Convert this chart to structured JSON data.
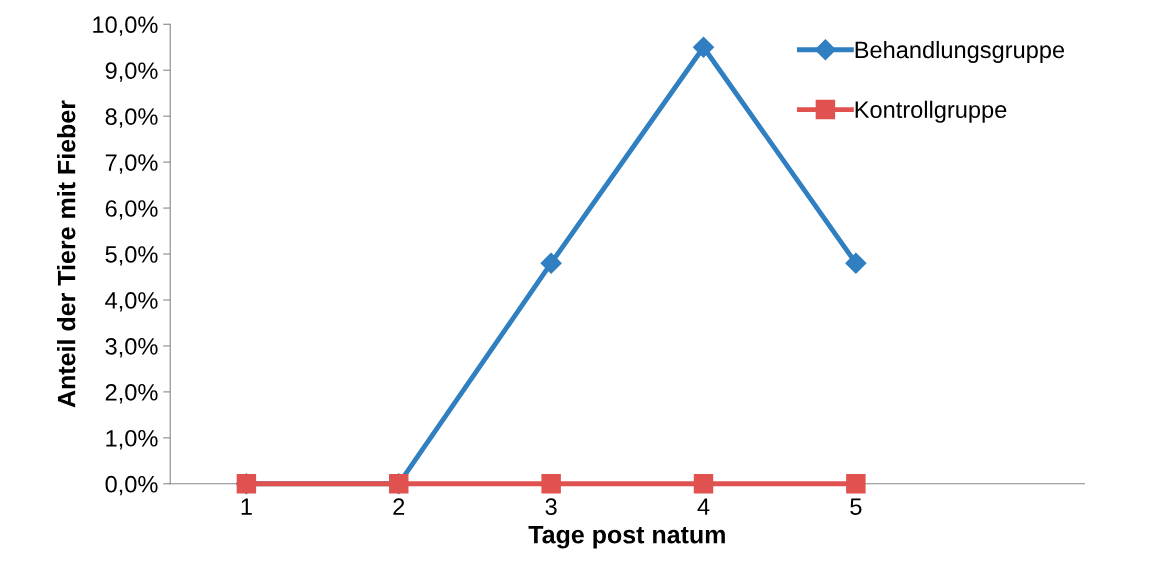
{
  "chart_data": {
    "type": "line",
    "xlabel": "Tage post natum",
    "ylabel": "Anteil der Tiere mit Fieber",
    "categories": [
      "1",
      "2",
      "3",
      "4",
      "5",
      null
    ],
    "series": [
      {
        "name": "Behandlungsgruppe",
        "color": "#2f7fc1",
        "marker": "diamond",
        "values": [
          0,
          0,
          4.8,
          9.5,
          4.8,
          null
        ]
      },
      {
        "name": "Kontrollgruppe",
        "color": "#e0524f",
        "marker": "square",
        "values": [
          0,
          0,
          0,
          0,
          0,
          null
        ]
      }
    ],
    "ylim": [
      0,
      10
    ],
    "yticks": [
      {
        "value": 0,
        "label": "0,0%"
      },
      {
        "value": 1,
        "label": "1,0%"
      },
      {
        "value": 2,
        "label": "2,0%"
      },
      {
        "value": 3,
        "label": "3,0%"
      },
      {
        "value": 4,
        "label": "4,0%"
      },
      {
        "value": 5,
        "label": "5,0%"
      },
      {
        "value": 6,
        "label": "6,0%"
      },
      {
        "value": 7,
        "label": "7,0%"
      },
      {
        "value": 8,
        "label": "8,0%"
      },
      {
        "value": 9,
        "label": "9,0%"
      },
      {
        "value": 10,
        "label": "10,0%"
      }
    ],
    "grid": false,
    "legend": "top right",
    "line_style": "solid"
  }
}
